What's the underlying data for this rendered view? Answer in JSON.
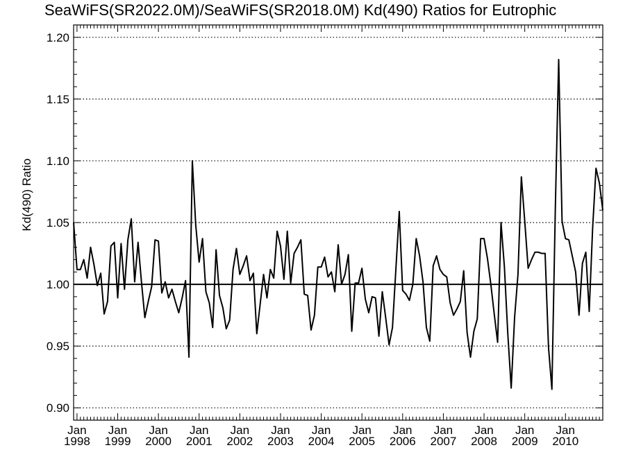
{
  "chart_data": {
    "type": "line",
    "title": "SeaWiFS(SR2022.0M)/SeaWiFS(SR2018.0M)  Kd(490) Ratios for Eutrophic",
    "xlabel": "",
    "ylabel": "Kd(490) Ratio",
    "x_tick_labels": [
      {
        "month": "Jan",
        "year": "1998"
      },
      {
        "month": "Jan",
        "year": "1999"
      },
      {
        "month": "Jan",
        "year": "2000"
      },
      {
        "month": "Jan",
        "year": "2001"
      },
      {
        "month": "Jan",
        "year": "2002"
      },
      {
        "month": "Jan",
        "year": "2003"
      },
      {
        "month": "Jan",
        "year": "2004"
      },
      {
        "month": "Jan",
        "year": "2005"
      },
      {
        "month": "Jan",
        "year": "2006"
      },
      {
        "month": "Jan",
        "year": "2007"
      },
      {
        "month": "Jan",
        "year": "2008"
      },
      {
        "month": "Jan",
        "year": "2009"
      },
      {
        "month": "Jan",
        "year": "2010"
      }
    ],
    "x_tick_years": [
      1998,
      1999,
      2000,
      2001,
      2002,
      2003,
      2004,
      2005,
      2006,
      2007,
      2008,
      2009,
      2010
    ],
    "y_ticks": [
      "0.90",
      "0.95",
      "1.00",
      "1.05",
      "1.10",
      "1.15",
      "1.20"
    ],
    "y_tick_values": [
      0.9,
      0.95,
      1.0,
      1.05,
      1.1,
      1.15,
      1.2
    ],
    "ylim": [
      0.89,
      1.21
    ],
    "xlim": [
      "1997-12",
      "2010-12"
    ],
    "reference_line": 1.0,
    "grid": "dotted horizontal at y ticks",
    "series": [
      {
        "x_start": "1997-12",
        "interval": "monthly",
        "color": "#000000",
        "values": [
          1.05,
          1.012,
          1.012,
          1.02,
          1.005,
          1.03,
          1.016,
          0.999,
          1.009,
          0.976,
          0.986,
          1.031,
          1.034,
          0.989,
          1.033,
          0.996,
          1.036,
          1.053,
          1.002,
          1.034,
          1.002,
          0.973,
          0.986,
          0.998,
          1.036,
          1.035,
          0.993,
          1.002,
          0.989,
          0.996,
          0.986,
          0.977,
          0.989,
          1.003,
          0.941,
          1.1,
          1.048,
          1.018,
          1.037,
          0.994,
          0.985,
          0.965,
          1.028,
          0.991,
          0.981,
          0.964,
          0.971,
          1.012,
          1.029,
          1.008,
          1.015,
          1.023,
          1.003,
          1.009,
          0.96,
          0.984,
          1.008,
          0.989,
          1.012,
          1.005,
          1.043,
          1.031,
          1.004,
          1.043,
          1.001,
          1.025,
          1.03,
          1.036,
          0.992,
          0.991,
          0.963,
          0.975,
          1.014,
          1.014,
          1.022,
          1.006,
          1.01,
          0.994,
          1.032,
          1.0,
          1.008,
          1.024,
          0.962,
          1.001,
          1.001,
          1.013,
          0.988,
          0.977,
          0.99,
          0.989,
          0.958,
          0.994,
          0.973,
          0.951,
          0.965,
          1.012,
          1.059,
          0.995,
          0.992,
          0.987,
          1.0,
          1.037,
          1.023,
          1.002,
          0.965,
          0.954,
          1.015,
          1.023,
          1.012,
          1.008,
          1.006,
          0.985,
          0.975,
          0.98,
          0.986,
          1.011,
          0.961,
          0.941,
          0.962,
          0.972,
          1.037,
          1.037,
          1.021,
          1.0,
          0.976,
          0.953,
          1.05,
          1.014,
          0.96,
          0.916,
          0.973,
          1.008,
          1.087,
          1.051,
          1.013,
          1.02,
          1.026,
          1.026,
          1.025,
          1.025,
          0.949,
          0.915,
          1.06,
          1.182,
          1.051,
          1.037,
          1.036,
          1.023,
          1.01,
          0.975,
          1.017,
          1.026,
          0.978,
          1.045,
          1.094,
          1.082,
          1.06
        ]
      }
    ]
  }
}
